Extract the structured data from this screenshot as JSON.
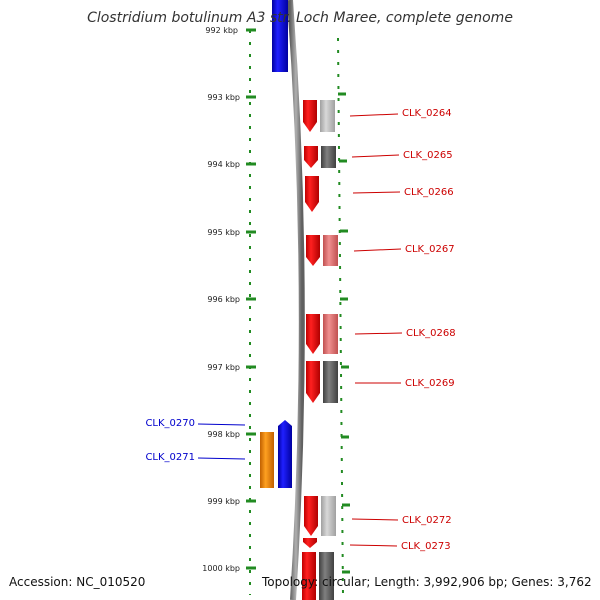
{
  "title": "Clostridium botulinum A3 str. Loch Maree, complete genome",
  "accession": "Accession: NC_010520",
  "topology": "Topology: circular; Length: 3,992,906 bp; Genes: 3,762",
  "scale_labels": [
    "992 kbp",
    "993 kbp",
    "994 kbp",
    "995 kbp",
    "996 kbp",
    "997 kbp",
    "998 kbp",
    "999 kbp",
    "1000 kbp"
  ],
  "gene_labels_right": [
    "CLK_0264",
    "CLK_0265",
    "CLK_0266",
    "CLK_0267",
    "CLK_0268",
    "CLK_0269",
    "CLK_0272",
    "CLK_0273"
  ],
  "gene_labels_left": [
    "CLK_0270",
    "CLK_0271"
  ],
  "colors": {
    "forward_gene": "#ff0000",
    "reverse_gene": "#0000ff",
    "orange_gene": "#ff8c00",
    "backbone": "#808080",
    "tick": "#228b22",
    "right_label": "#cc0000",
    "left_label": "#0000cc"
  }
}
